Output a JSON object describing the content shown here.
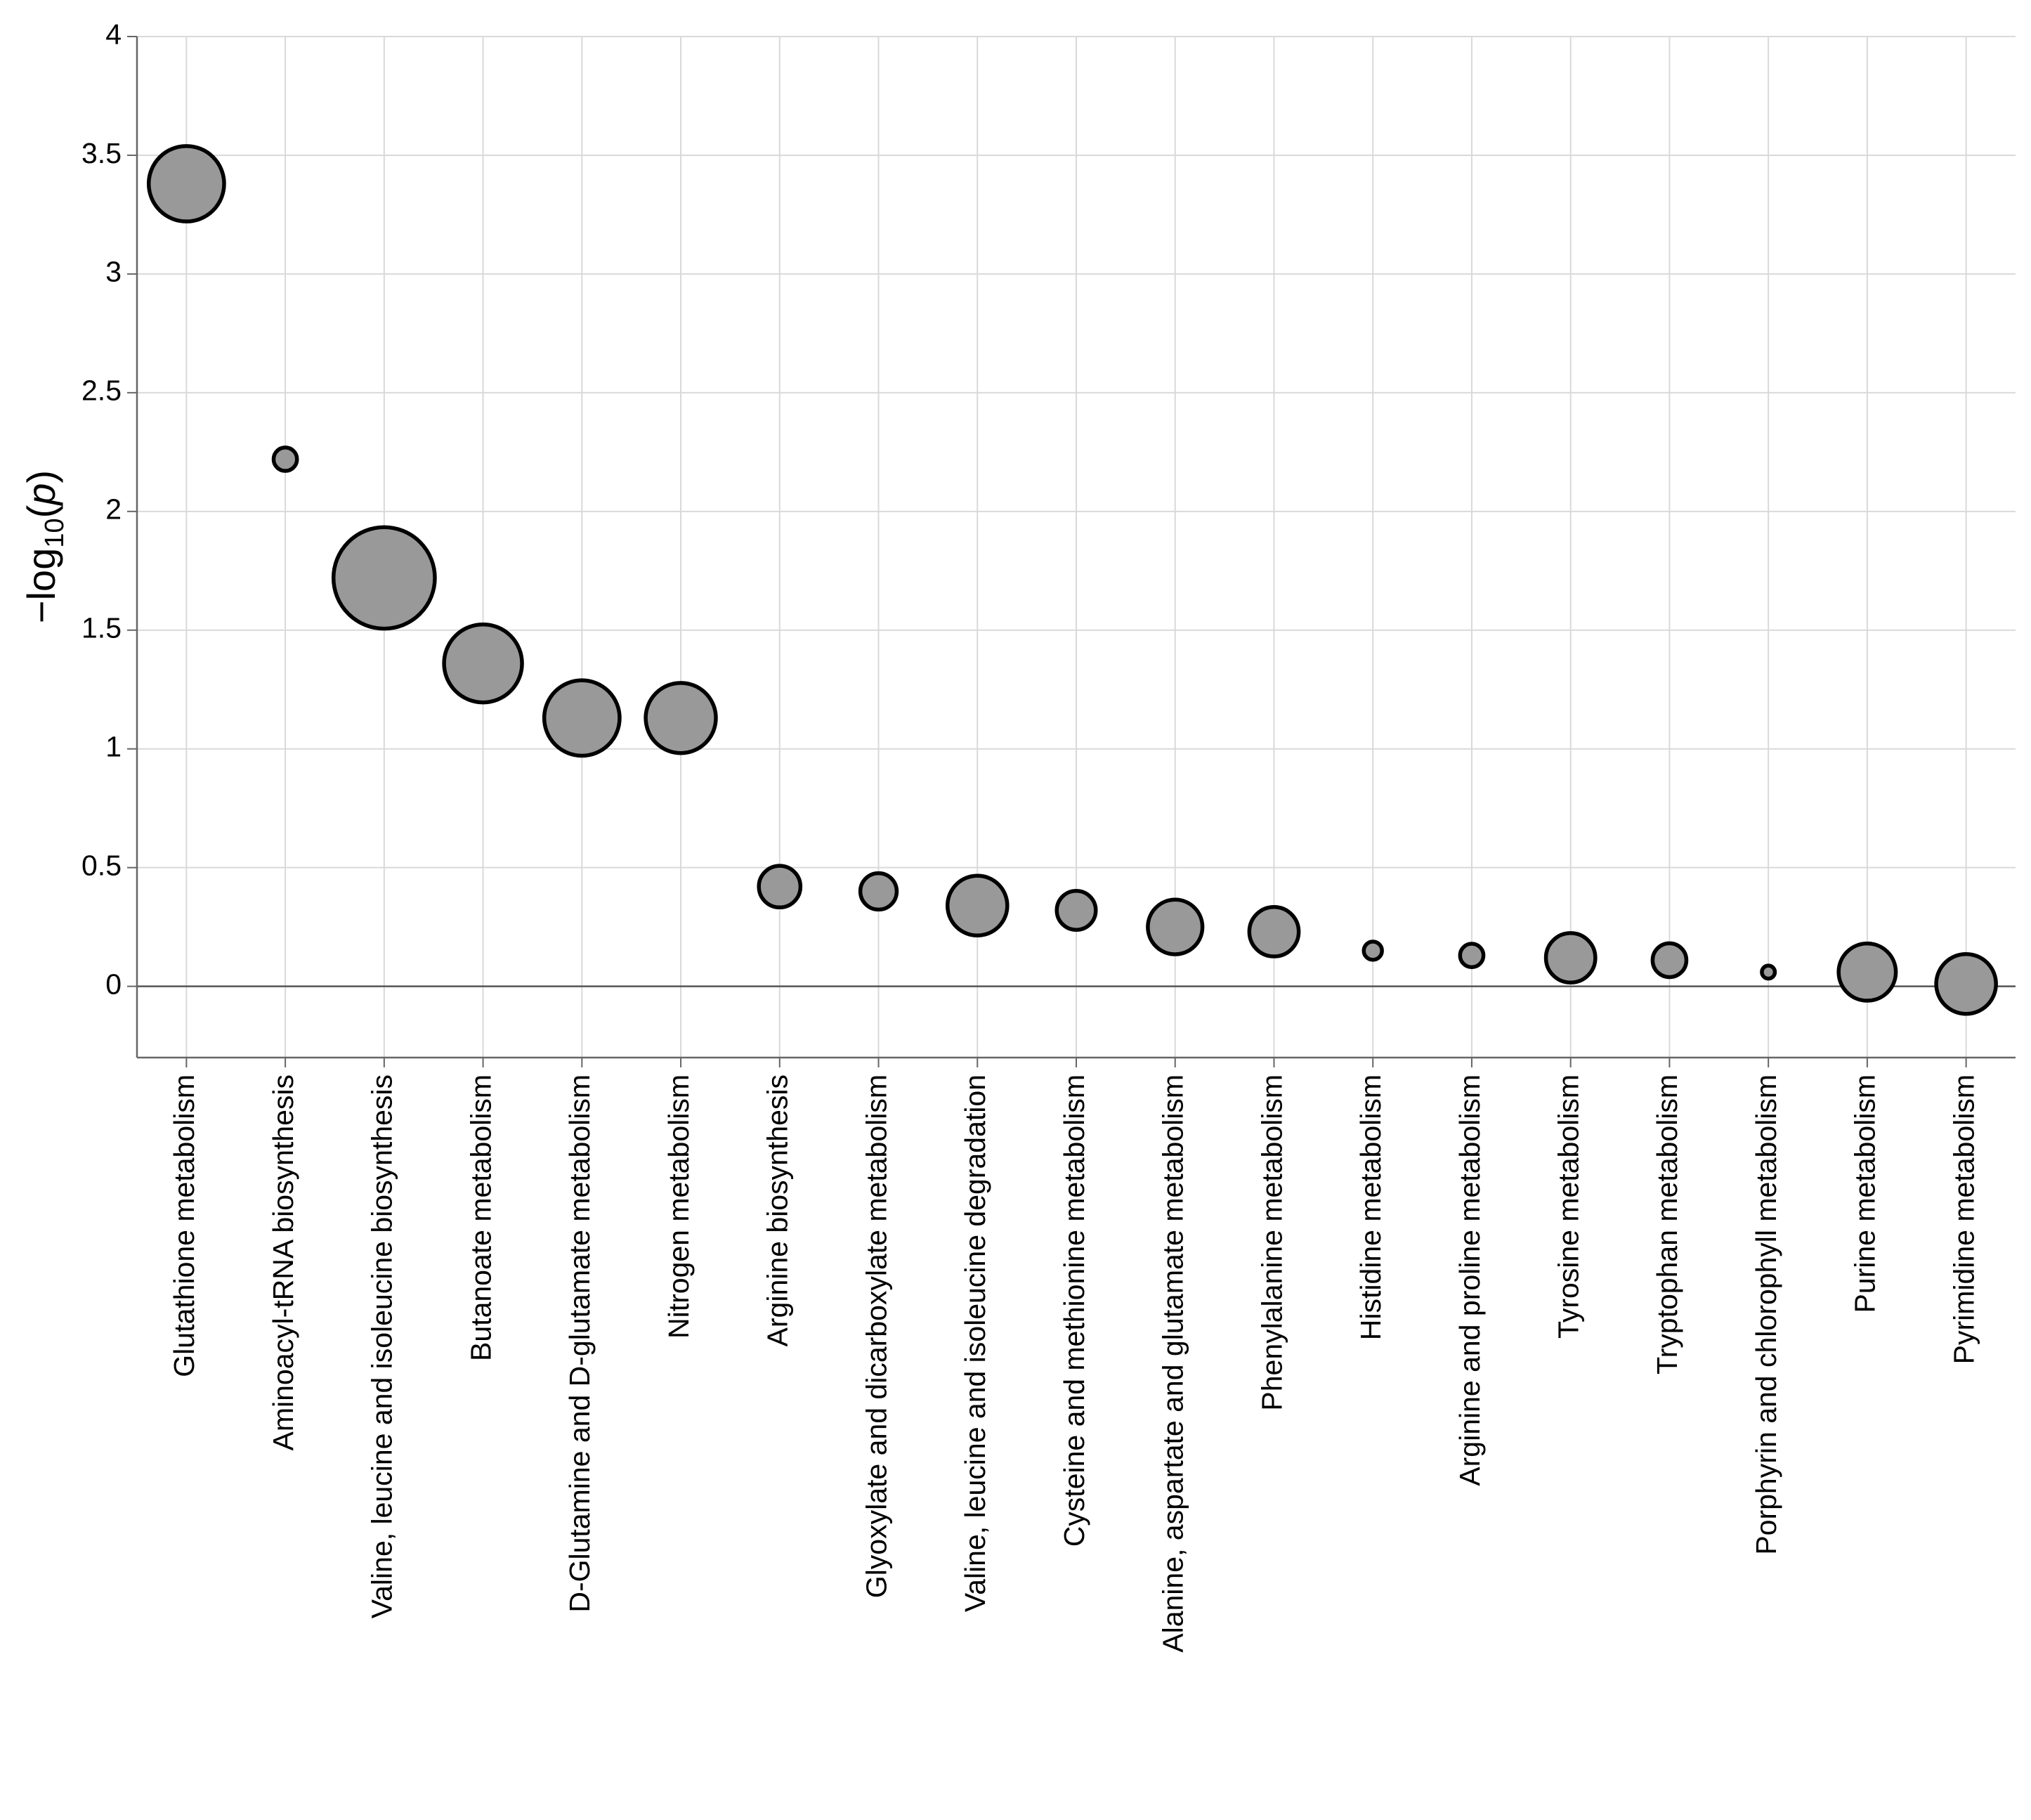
{
  "chart_data": {
    "type": "bubble",
    "ylabel": [
      "−log",
      "10",
      "(",
      "p",
      ")"
    ],
    "categories": [
      "Glutathione metabolism",
      "Aminoacyl-tRNA biosynthesis",
      "Valine, leucine and isoleucine biosynthesis",
      "Butanoate metabolism",
      "D-Glutamine and D-glutamate metabolism",
      "Nitrogen metabolism",
      "Arginine biosynthesis",
      "Glyoxylate and dicarboxylate metabolism",
      "Valine, leucine and isoleucine degradation",
      "Cysteine and methionine metabolism",
      "Alanine, aspartate and glutamate metabolism",
      "Phenylalanine metabolism",
      "Histidine metabolism",
      "Arginine and proline metabolism",
      "Tyrosine metabolism",
      "Tryptophan metabolism",
      "Porphyrin and chlorophyll metabolism",
      "Purine metabolism",
      "Pyrimidine metabolism"
    ],
    "values": [
      3.38,
      2.22,
      1.72,
      1.36,
      1.13,
      1.13,
      0.42,
      0.4,
      0.34,
      0.32,
      0.25,
      0.23,
      0.15,
      0.13,
      0.12,
      0.11,
      0.06,
      0.06,
      0.01
    ],
    "sizes": [
      8.41,
      0.81,
      15.21,
      9,
      8.41,
      7.29,
      2.56,
      1.96,
      5.29,
      2.25,
      4.41,
      3.61,
      0.49,
      0.81,
      3.61,
      1.69,
      0.25,
      4.84,
      5.29
    ],
    "color": "#999999",
    "ylim": [
      -0.3,
      4
    ],
    "yticks": [
      0,
      0.5,
      1,
      1.5,
      2,
      2.5,
      3,
      3.5,
      4
    ],
    "grid": true
  }
}
